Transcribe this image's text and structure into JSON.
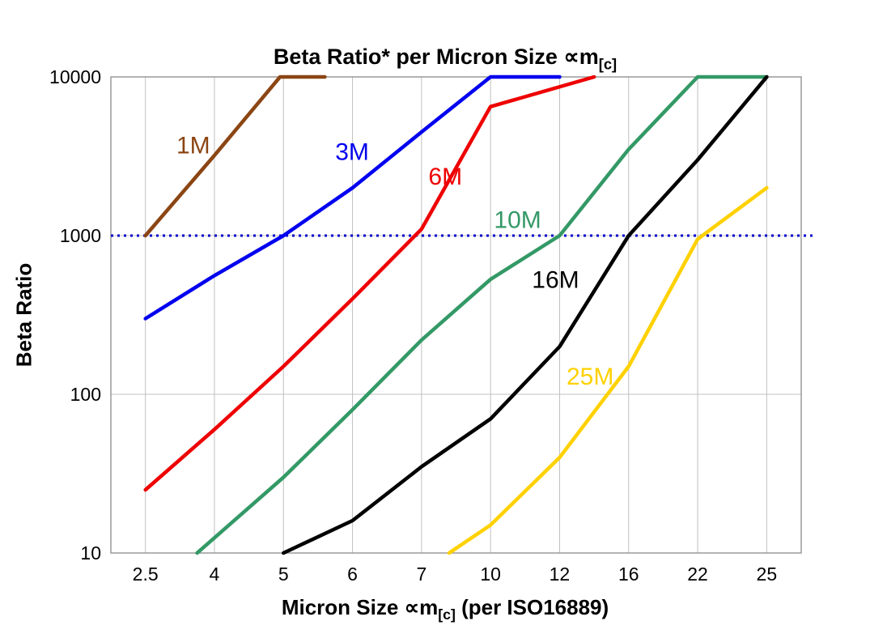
{
  "title": {
    "main": "Beta Ratio* per Micron Size ∝m",
    "sub": "[c]"
  },
  "y_axis": {
    "label": "Beta Ratio",
    "ticks": [
      "10000",
      "1000",
      "100",
      "10"
    ]
  },
  "x_axis": {
    "label_pre": "Micron Size ∝m",
    "label_sub": "[c]",
    "label_post": " (per ISO16889)",
    "ticks": [
      "2.5",
      "4",
      "5",
      "6",
      "7",
      "10",
      "12",
      "16",
      "22",
      "25"
    ]
  },
  "colors": {
    "gridline": "#c0c0c0",
    "frame": "#9a9a9a",
    "reference": "#0000cc",
    "series_1M": "#8B4513",
    "series_3M": "#0000EE",
    "series_6M": "#EE0000",
    "series_10M": "#339966",
    "series_16M": "#000000",
    "series_25M": "#FFD100"
  },
  "chart_data": {
    "type": "line",
    "title": "Beta Ratio* per Micron Size ∝m[c]",
    "xlabel": "Micron Size ∝m[c] (per ISO16889)",
    "ylabel": "Beta Ratio",
    "x_categories": [
      "2.5",
      "4",
      "5",
      "6",
      "7",
      "10",
      "12",
      "16",
      "22",
      "25"
    ],
    "y_scale": "log",
    "ylim": [
      10,
      10000
    ],
    "y_ticks": [
      10000,
      1000,
      100,
      10
    ],
    "grid": true,
    "legend": "inline-labels",
    "reference_line": {
      "y": 1000,
      "color": "#0000cc",
      "style": "dotted"
    },
    "series": [
      {
        "name": "1M",
        "color": "#8B4513",
        "label_at": [
          0.45,
          3300
        ],
        "points": [
          [
            0,
            1000
          ],
          [
            1,
            3200
          ],
          [
            1.95,
            10000
          ],
          [
            2.6,
            10000
          ]
        ]
      },
      {
        "name": "3M",
        "color": "#0000EE",
        "label_at": [
          2.75,
          3000
        ],
        "points": [
          [
            0,
            300
          ],
          [
            1,
            560
          ],
          [
            2,
            1000
          ],
          [
            3,
            2000
          ],
          [
            4,
            4500
          ],
          [
            5,
            10000
          ],
          [
            6,
            10000
          ]
        ]
      },
      {
        "name": "6M",
        "color": "#EE0000",
        "label_at": [
          4.1,
          2100
        ],
        "points": [
          [
            0,
            25
          ],
          [
            1,
            60
          ],
          [
            2,
            150
          ],
          [
            3,
            400
          ],
          [
            4,
            1100
          ],
          [
            5,
            6500
          ],
          [
            6.5,
            10000
          ]
        ]
      },
      {
        "name": "10M",
        "color": "#339966",
        "label_at": [
          5.05,
          1120
        ],
        "points": [
          [
            0.75,
            10
          ],
          [
            2,
            30
          ],
          [
            3,
            80
          ],
          [
            4,
            220
          ],
          [
            5,
            530
          ],
          [
            6,
            1000
          ],
          [
            7,
            3500
          ],
          [
            8,
            10000
          ],
          [
            9,
            10000
          ]
        ]
      },
      {
        "name": "16M",
        "color": "#000000",
        "label_at": [
          5.6,
          470
        ],
        "points": [
          [
            2,
            10
          ],
          [
            3,
            16
          ],
          [
            4,
            35
          ],
          [
            5,
            70
          ],
          [
            6,
            200
          ],
          [
            7,
            1000
          ],
          [
            8,
            3000
          ],
          [
            9,
            10000
          ]
        ]
      },
      {
        "name": "25M",
        "color": "#FFD100",
        "label_at": [
          6.1,
          115
        ],
        "points": [
          [
            4.4,
            10
          ],
          [
            5,
            15
          ],
          [
            6,
            40
          ],
          [
            7,
            150
          ],
          [
            8,
            950
          ],
          [
            9,
            2000
          ]
        ]
      }
    ]
  }
}
